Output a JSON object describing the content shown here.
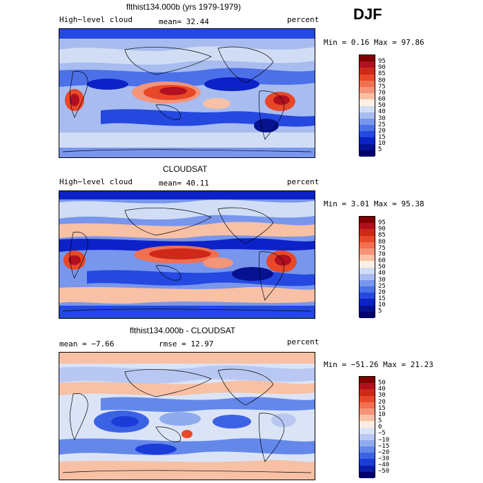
{
  "season": "DJF",
  "panels": [
    {
      "title": "flthist134.000b (yrs 1979-1979)",
      "left_label": "High−level cloud",
      "stat_text": "mean=  32.44",
      "unit": "percent",
      "range_text": "Min =   0.16 Max =  97.86",
      "colorbar": {
        "levels": [
          "95",
          "90",
          "85",
          "80",
          "75",
          "70",
          "60",
          "50",
          "40",
          "30",
          "25",
          "20",
          "15",
          "10",
          "5"
        ],
        "colors": [
          "#800000",
          "#b01020",
          "#d02818",
          "#e84828",
          "#f07050",
          "#f49478",
          "#f8c0a4",
          "#fcf0e4",
          "#d0ddf4",
          "#a8bcf0",
          "#7896ec",
          "#4c70e8",
          "#2448e0",
          "#0c22c8",
          "#061290",
          "#00006c"
        ]
      }
    },
    {
      "title": "CLOUDSAT",
      "left_label": "High−level cloud",
      "stat_text": "mean=  40.11",
      "unit": "percent",
      "range_text": "Min =   3.01 Max =  95.38",
      "colorbar": {
        "levels": [
          "95",
          "90",
          "85",
          "80",
          "75",
          "70",
          "60",
          "50",
          "40",
          "30",
          "25",
          "20",
          "15",
          "10",
          "5"
        ],
        "colors": [
          "#800000",
          "#b01020",
          "#d02818",
          "#e84828",
          "#f07050",
          "#f49478",
          "#f8c0a4",
          "#fcf0e4",
          "#d0ddf4",
          "#a8bcf0",
          "#7896ec",
          "#4c70e8",
          "#2448e0",
          "#0c22c8",
          "#061290",
          "#00006c"
        ]
      }
    },
    {
      "title": "flthist134.000b - CLOUDSAT",
      "left_label": "mean =   −7.66",
      "stat_text": "rmse =  12.97",
      "unit": "percent",
      "range_text": "Min = −51.26 Max =  21.23",
      "colorbar": {
        "levels": [
          "50",
          "40",
          "30",
          "20",
          "15",
          "10",
          "5",
          "0",
          "−5",
          "−10",
          "−15",
          "−20",
          "−30",
          "−40",
          "−50"
        ],
        "colors": [
          "#800000",
          "#b01020",
          "#d02818",
          "#e84828",
          "#f07050",
          "#f49478",
          "#f8c0a4",
          "#fcece0",
          "#dae4f6",
          "#b8c8f2",
          "#90aaee",
          "#6488ea",
          "#3c62e4",
          "#1c3cd8",
          "#0a1ca8",
          "#00006c"
        ]
      }
    }
  ],
  "chart_data": {
    "type": "heatmap",
    "variable": "High-level cloud",
    "units": "percent",
    "season": "DJF",
    "panels": [
      {
        "name": "flthist134.000b (yrs 1979-1979)",
        "mean": 32.44,
        "min": 0.16,
        "max": 97.86,
        "contour_levels": [
          5,
          10,
          15,
          20,
          25,
          30,
          40,
          50,
          60,
          70,
          75,
          80,
          85,
          90,
          95
        ]
      },
      {
        "name": "CLOUDSAT",
        "mean": 40.11,
        "min": 3.01,
        "max": 95.38,
        "contour_levels": [
          5,
          10,
          15,
          20,
          25,
          30,
          40,
          50,
          60,
          70,
          75,
          80,
          85,
          90,
          95
        ]
      },
      {
        "name": "flthist134.000b - CLOUDSAT",
        "mean": -7.66,
        "rmse": 12.97,
        "min": -51.26,
        "max": 21.23,
        "contour_levels": [
          -50,
          -40,
          -30,
          -20,
          -15,
          -10,
          -5,
          0,
          5,
          10,
          15,
          20,
          30,
          40,
          50
        ]
      }
    ]
  }
}
